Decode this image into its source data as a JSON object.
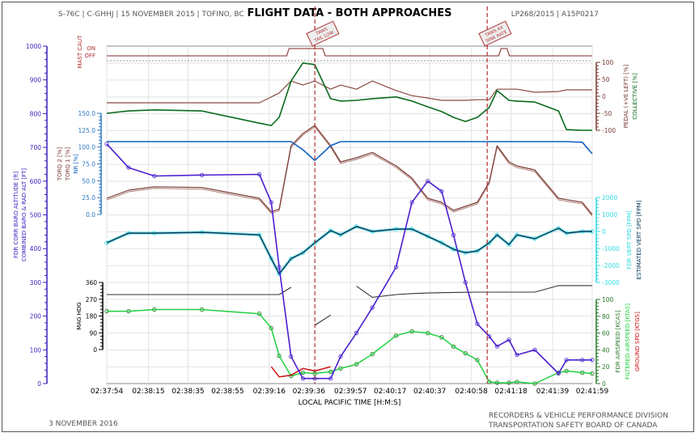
{
  "header": {
    "left": "S-76C | C-GHHJ | 15 NOVEMBER 2015 | TOFINO, BC",
    "title": "FLIGHT DATA - BOTH APPROACHES",
    "right": "LP268/2015 | A15P0217"
  },
  "footer": {
    "date": "3 NOVEMBER 2016",
    "org_line1": "RECORDERS & VEHICLE PERFORMANCE DIVISION",
    "org_line2": "TRANSPORTATION SAFETY BOARD OF CANADA"
  },
  "chart_data": {
    "type": "line",
    "xlabel": "LOCAL PACIFIC TIME [H:M:S]",
    "x_ticks": [
      "02:37:54",
      "02:38:15",
      "02:38:35",
      "02:38:55",
      "02:39:16",
      "02:39:36",
      "02:39:57",
      "02:40:17",
      "02:40:37",
      "02:40:58",
      "02:41:18",
      "02:41:39",
      "02:41:59"
    ],
    "xlim": [
      "02:37:54",
      "02:41:59"
    ],
    "grid": true,
    "colors": {
      "altitude": "#4b1fd0",
      "collective": "#0a6b1e",
      "pedal": "#8b4a44",
      "nr": "#1060c0",
      "torque": "#7a3a34",
      "vert_fdr": "#40e0e8",
      "vert_est": "#073a5a",
      "heading": "#333333",
      "airspeed_fdr": "#2a7a2a",
      "airspeed_filt": "#20d040",
      "ground_spd": "#cc1010",
      "events": "#b03030"
    },
    "events": [
      {
        "time": "02:39:39",
        "label_line1": "TAWS",
        "label_line2": "TAIL LOW"
      },
      {
        "time": "02:41:06",
        "label_line1": "TAWS 4X",
        "label_line2": "SINK RATE"
      }
    ],
    "mast_caut": {
      "axis_label": "MAST CAUT",
      "states": [
        "ON",
        "OFF"
      ],
      "on_intervals": [
        [
          "02:39:26",
          "02:39:43"
        ],
        [
          "02:41:13",
          "02:41:16"
        ]
      ]
    },
    "x": [
      "02:37:54",
      "02:38:05",
      "02:38:18",
      "02:38:42",
      "02:39:11",
      "02:39:17",
      "02:39:21",
      "02:39:27",
      "02:39:33",
      "02:39:39",
      "02:39:47",
      "02:39:52",
      "02:40:00",
      "02:40:08",
      "02:40:20",
      "02:40:28",
      "02:40:36",
      "02:40:43",
      "02:40:49",
      "02:40:55",
      "02:41:01",
      "02:41:07",
      "02:41:11",
      "02:41:17",
      "02:41:21",
      "02:41:30",
      "02:41:42",
      "02:41:46",
      "02:41:54",
      "02:41:59"
    ],
    "axes": [
      {
        "id": "alt",
        "side": "left",
        "labels": [
          "FDR CORR BARO ALTITUDE [ft]",
          "COMBINED BARO & RAD ALT [FT]"
        ],
        "ylim": [
          0,
          1000
        ],
        "ticks": [
          0,
          100,
          200,
          300,
          400,
          500,
          600,
          700,
          800,
          900,
          1000
        ]
      },
      {
        "id": "ped",
        "side": "right",
        "labels": [
          "PEDAL (+VE LEFT) [%]",
          "COLLECTIVE [%]"
        ],
        "ylim": [
          -100,
          100
        ],
        "ticks": [
          -100,
          -50,
          0,
          50,
          100
        ]
      },
      {
        "id": "trq",
        "side": "left",
        "labels": [
          "TORQ 2 [%]",
          "TORQ 1 [%]",
          "NR [%]"
        ],
        "ylim": [
          0,
          150
        ],
        "ticks": [
          "0.0",
          "25.0",
          "50.0",
          "75.0",
          "100.0",
          "125.0",
          "150.0"
        ]
      },
      {
        "id": "vs",
        "side": "right",
        "labels": [
          "FDR VERT SPD [FPM]",
          "ESTIMATED VERT SPD [FPM]"
        ],
        "ylim": [
          -3000,
          2000
        ],
        "ticks": [
          -3000,
          -2000,
          -1000,
          0,
          1000,
          2000
        ]
      },
      {
        "id": "hdg",
        "side": "left",
        "labels": [
          "MAG HDG"
        ],
        "ylim": [
          0,
          360
        ],
        "ticks": [
          0,
          90,
          180,
          270,
          360
        ]
      },
      {
        "id": "spd",
        "side": "right",
        "labels": [
          "FDR AIRSPEED [KCAS]",
          "FILTERED AIRSPEED [KTAS]",
          "GROUND SPD [KTGS]"
        ],
        "ylim": [
          0,
          100
        ],
        "ticks": [
          0,
          20,
          40,
          60,
          80,
          100
        ]
      }
    ],
    "series": [
      {
        "key": "altitude",
        "axis": "alt",
        "markers": true,
        "values": [
          710,
          640,
          615,
          618,
          620,
          537,
          345,
          80,
          15,
          15,
          15,
          80,
          150,
          225,
          345,
          537,
          600,
          570,
          440,
          300,
          177,
          140,
          110,
          130,
          85,
          100,
          30,
          70,
          70,
          70
        ]
      },
      {
        "key": "collective",
        "axis": "ped",
        "values": [
          -50,
          -43,
          -40,
          -43,
          -79,
          -86,
          -62,
          45,
          98,
          93,
          -7,
          -14,
          -12,
          -7,
          -2,
          -14,
          -31,
          -45,
          -62,
          -74,
          -62,
          -33,
          17,
          -12,
          -14,
          -17,
          -43,
          -98,
          -100,
          -100
        ]
      },
      {
        "key": "pedal",
        "axis": "ped",
        "values": [
          -19,
          -19,
          -19,
          -19,
          -19,
          -2,
          10,
          45,
          33,
          45,
          21,
          33,
          21,
          45,
          17,
          2,
          -5,
          -12,
          -12,
          -12,
          -10,
          -10,
          21,
          21,
          21,
          12,
          14,
          19,
          19,
          19
        ]
      },
      {
        "key": "nr",
        "axis": "trq",
        "values": [
          108,
          108,
          108,
          108,
          108,
          108,
          108,
          108,
          96,
          80,
          102,
          108,
          108,
          108,
          108,
          108,
          108,
          108,
          108,
          108,
          108,
          108,
          108,
          108,
          108,
          108,
          108,
          108,
          107,
          90
        ]
      },
      {
        "key": "torque",
        "axis": "trq",
        "values": [
          24,
          36,
          41,
          40,
          24,
          4,
          8,
          102,
          120,
          132,
          102,
          78,
          84,
          92,
          72,
          54,
          24,
          18,
          6,
          12,
          18,
          48,
          102,
          78,
          72,
          66,
          24,
          22,
          18,
          0
        ]
      },
      {
        "key": "vert_est",
        "axis": "vs",
        "markers_from": "vert_fdr",
        "values": [
          -670,
          -100,
          -100,
          -50,
          -200,
          -1600,
          -2500,
          -1600,
          -1250,
          -670,
          50,
          -200,
          290,
          0,
          140,
          140,
          -290,
          -670,
          -1050,
          -1250,
          -1150,
          -670,
          -200,
          -770,
          -200,
          -430,
          190,
          -100,
          0,
          0
        ]
      },
      {
        "key": "heading",
        "axis": "hdg",
        "values": [
          295,
          295,
          295,
          295,
          295,
          295,
          295,
          334,
          null,
          130,
          185,
          null,
          340,
          280,
          295,
          300,
          303,
          305,
          306,
          307,
          308,
          308,
          308,
          308,
          308,
          308,
          343,
          343,
          343,
          343
        ]
      },
      {
        "key": "airspeed_filt",
        "axis": "spd",
        "markers_from": "airspeed_fdr",
        "values": [
          86,
          86,
          88,
          88,
          83,
          66,
          33,
          9,
          13,
          12,
          14,
          18,
          23,
          35,
          57,
          62,
          60,
          55,
          44,
          36,
          28,
          2,
          1,
          1,
          2,
          0,
          13,
          15,
          13,
          12
        ]
      },
      {
        "key": "ground_spd",
        "axis": "spd",
        "values": [
          null,
          null,
          null,
          null,
          null,
          20,
          8,
          10,
          18,
          15,
          20,
          null,
          null,
          null,
          null,
          null,
          null,
          null,
          null,
          null,
          null,
          null,
          null,
          null,
          null,
          null,
          null,
          null,
          null,
          null
        ]
      }
    ]
  }
}
